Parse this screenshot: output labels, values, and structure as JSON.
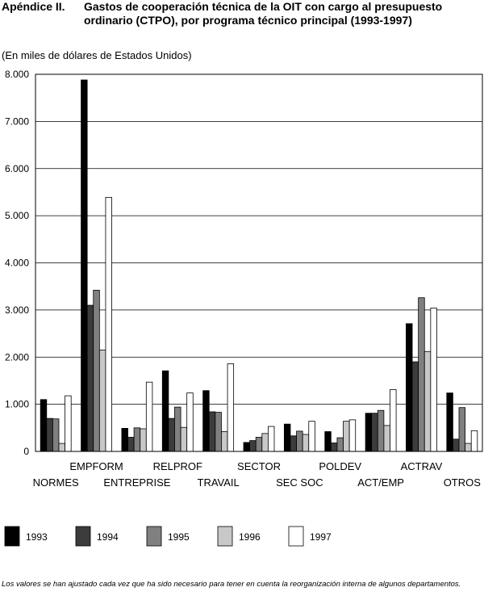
{
  "header": {
    "label": "Apéndice II.",
    "title": "Gastos de cooperación técnica de la OIT con cargo al presupuesto ordinario (CTPO), por programa técnico principal (1993-1997)"
  },
  "units_note": "(En miles de dólares de Estados Unidos)",
  "footnote": "Los valores se han ajustado cada vez que ha sido necesario para tener en cuenta la reorganización interna de algunos departamentos.",
  "chart_data": {
    "type": "bar",
    "title": "Gastos de cooperación técnica de la OIT con cargo al presupuesto ordinario (CTPO), por programa técnico principal (1993-1997)",
    "ylabel": "(En miles de dólares de Estados Unidos)",
    "ylim": [
      0,
      8000
    ],
    "yticks": [
      0,
      1000,
      2000,
      3000,
      4000,
      5000,
      6000,
      7000,
      8000
    ],
    "ytick_labels": [
      "0",
      "1.000",
      "2.000",
      "3.000",
      "4.000",
      "5.000",
      "6.000",
      "7.000",
      "8.000"
    ],
    "grid": true,
    "legend_position": "bottom",
    "categories": [
      "NORMES",
      "EMPFORM",
      "ENTREPRISE",
      "RELPROF",
      "TRAVAIL",
      "SECTOR",
      "SEC SOC",
      "POLDEV",
      "ACT/EMP",
      "ACTRAV",
      "OTROS"
    ],
    "series": [
      {
        "name": "1993",
        "color": "#000000",
        "values": [
          1100,
          7880,
          490,
          1710,
          1290,
          190,
          580,
          420,
          810,
          2710,
          1240
        ]
      },
      {
        "name": "1994",
        "color": "#3c3c3c",
        "values": [
          700,
          3100,
          300,
          700,
          840,
          230,
          330,
          180,
          810,
          1900,
          260
        ]
      },
      {
        "name": "1995",
        "color": "#808080",
        "values": [
          690,
          3420,
          500,
          940,
          830,
          300,
          430,
          290,
          870,
          3260,
          930
        ]
      },
      {
        "name": "1996",
        "color": "#c8c8c8",
        "values": [
          170,
          2150,
          480,
          510,
          420,
          380,
          360,
          640,
          550,
          2120,
          170
        ]
      },
      {
        "name": "1997",
        "color": "#ffffff",
        "values": [
          1180,
          5390,
          1470,
          1240,
          1860,
          530,
          640,
          670,
          1310,
          3040,
          440
        ]
      }
    ]
  }
}
